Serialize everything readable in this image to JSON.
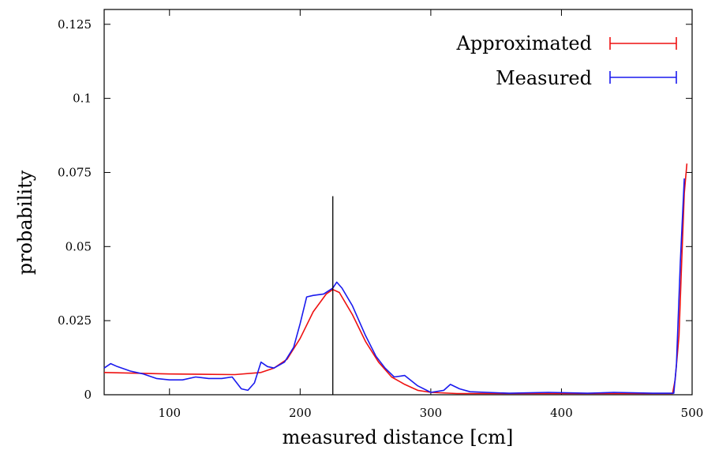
{
  "chart_data": {
    "type": "line",
    "title": "",
    "xlabel": "measured distance [cm]",
    "ylabel": "probability",
    "xlim": [
      50,
      500
    ],
    "ylim": [
      0,
      0.13
    ],
    "x_ticks": [
      100,
      200,
      300,
      400,
      500
    ],
    "x_tick_labels": [
      "100",
      "200",
      "300",
      "400",
      "500"
    ],
    "y_ticks": [
      0,
      0.025,
      0.05,
      0.075,
      0.1,
      0.125
    ],
    "y_tick_labels": [
      "0",
      "0.025",
      "0.05",
      "0.075",
      "0.1",
      "0.125"
    ],
    "grid": false,
    "legend_position": "top-right",
    "vertical_marker": {
      "x": 225,
      "y_top": 0.067
    },
    "series": [
      {
        "name": "Approximated",
        "color": "#ee1111",
        "points": [
          [
            50,
            0.0075
          ],
          [
            100,
            0.007
          ],
          [
            150,
            0.0068
          ],
          [
            170,
            0.0075
          ],
          [
            180,
            0.009
          ],
          [
            190,
            0.012
          ],
          [
            200,
            0.019
          ],
          [
            210,
            0.028
          ],
          [
            220,
            0.034
          ],
          [
            225,
            0.0355
          ],
          [
            230,
            0.0345
          ],
          [
            240,
            0.027
          ],
          [
            250,
            0.018
          ],
          [
            260,
            0.011
          ],
          [
            270,
            0.006
          ],
          [
            280,
            0.0035
          ],
          [
            290,
            0.0015
          ],
          [
            300,
            0.0008
          ],
          [
            320,
            0.0004
          ],
          [
            400,
            0.0004
          ],
          [
            485,
            0.0004
          ],
          [
            487,
            0.005
          ],
          [
            490,
            0.02
          ],
          [
            492,
            0.045
          ],
          [
            494,
            0.068
          ],
          [
            496,
            0.078
          ]
        ]
      },
      {
        "name": "Measured",
        "color": "#1a1aee",
        "points": [
          [
            50,
            0.009
          ],
          [
            55,
            0.0105
          ],
          [
            60,
            0.0095
          ],
          [
            70,
            0.008
          ],
          [
            80,
            0.007
          ],
          [
            90,
            0.0055
          ],
          [
            100,
            0.005
          ],
          [
            110,
            0.005
          ],
          [
            120,
            0.006
          ],
          [
            130,
            0.0055
          ],
          [
            140,
            0.0055
          ],
          [
            148,
            0.006
          ],
          [
            155,
            0.002
          ],
          [
            160,
            0.0015
          ],
          [
            165,
            0.004
          ],
          [
            170,
            0.011
          ],
          [
            175,
            0.0095
          ],
          [
            180,
            0.009
          ],
          [
            188,
            0.011
          ],
          [
            195,
            0.016
          ],
          [
            200,
            0.024
          ],
          [
            205,
            0.033
          ],
          [
            210,
            0.0335
          ],
          [
            218,
            0.034
          ],
          [
            225,
            0.036
          ],
          [
            228,
            0.038
          ],
          [
            232,
            0.036
          ],
          [
            240,
            0.03
          ],
          [
            250,
            0.02
          ],
          [
            258,
            0.013
          ],
          [
            265,
            0.009
          ],
          [
            272,
            0.006
          ],
          [
            280,
            0.0065
          ],
          [
            290,
            0.003
          ],
          [
            300,
            0.0008
          ],
          [
            310,
            0.0015
          ],
          [
            315,
            0.0035
          ],
          [
            322,
            0.002
          ],
          [
            330,
            0.001
          ],
          [
            360,
            0.0005
          ],
          [
            390,
            0.0008
          ],
          [
            420,
            0.0005
          ],
          [
            440,
            0.0008
          ],
          [
            470,
            0.0005
          ],
          [
            486,
            0.0005
          ],
          [
            488,
            0.01
          ],
          [
            491,
            0.045
          ],
          [
            494,
            0.073
          ]
        ]
      }
    ]
  }
}
